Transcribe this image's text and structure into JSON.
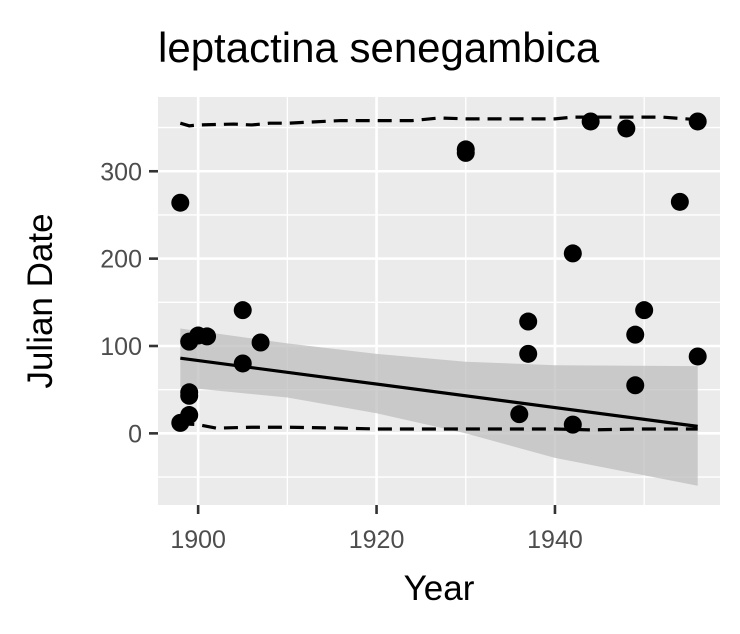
{
  "chart_data": {
    "type": "scatter",
    "title": "leptactina senegambica",
    "xlabel": "Year",
    "ylabel": "Julian Date",
    "xlim": [
      1895.5,
      1958.5
    ],
    "ylim": [
      -82,
      385
    ],
    "x_ticks": [
      1900,
      1920,
      1940
    ],
    "y_ticks": [
      0,
      100,
      200,
      300
    ],
    "grid": true,
    "legend": "none",
    "colors": {
      "panel_background": "#ebebeb",
      "grid_major": "#ffffff",
      "points": "#000000",
      "trend_line": "#000000",
      "confidence_band": "#bdbdbd",
      "tick_text": "#4d4d4d"
    },
    "points": [
      {
        "x": 1898,
        "y": 264
      },
      {
        "x": 1898,
        "y": 12
      },
      {
        "x": 1899,
        "y": 105
      },
      {
        "x": 1899,
        "y": 47
      },
      {
        "x": 1899,
        "y": 43
      },
      {
        "x": 1899,
        "y": 21
      },
      {
        "x": 1900,
        "y": 112
      },
      {
        "x": 1901,
        "y": 111
      },
      {
        "x": 1905,
        "y": 141
      },
      {
        "x": 1905,
        "y": 80
      },
      {
        "x": 1907,
        "y": 104
      },
      {
        "x": 1930,
        "y": 325
      },
      {
        "x": 1930,
        "y": 321
      },
      {
        "x": 1936,
        "y": 22
      },
      {
        "x": 1937,
        "y": 128
      },
      {
        "x": 1937,
        "y": 91
      },
      {
        "x": 1942,
        "y": 206
      },
      {
        "x": 1942,
        "y": 10
      },
      {
        "x": 1944,
        "y": 357
      },
      {
        "x": 1948,
        "y": 349
      },
      {
        "x": 1949,
        "y": 113
      },
      {
        "x": 1949,
        "y": 55
      },
      {
        "x": 1950,
        "y": 141
      },
      {
        "x": 1954,
        "y": 265
      },
      {
        "x": 1956,
        "y": 357
      },
      {
        "x": 1956,
        "y": 88
      }
    ],
    "trend_line": {
      "x": [
        1898,
        1956
      ],
      "y": [
        86,
        8
      ]
    },
    "confidence_band": {
      "x": [
        1898,
        1910,
        1920,
        1930,
        1940,
        1956
      ],
      "upper": [
        120,
        103,
        91,
        82,
        78,
        77
      ],
      "lower": [
        53,
        41,
        23,
        0,
        -28,
        -60
      ]
    },
    "quantile_upper": {
      "x": [
        1898,
        1899,
        1900,
        1904,
        1906,
        1908,
        1910,
        1916,
        1924,
        1927,
        1930,
        1936,
        1940,
        1942,
        1946,
        1952,
        1956
      ],
      "y": [
        355,
        352,
        353,
        354,
        353,
        355,
        355,
        358,
        358,
        361,
        360,
        360,
        360,
        362,
        362,
        362,
        359
      ]
    },
    "quantile_lower": {
      "x": [
        1898,
        1900,
        1902,
        1906,
        1910,
        1916,
        1920,
        1930,
        1940,
        1944,
        1950,
        1956
      ],
      "y": [
        11,
        10,
        6,
        7,
        7,
        6,
        5,
        5,
        5,
        4,
        5,
        5
      ]
    }
  }
}
